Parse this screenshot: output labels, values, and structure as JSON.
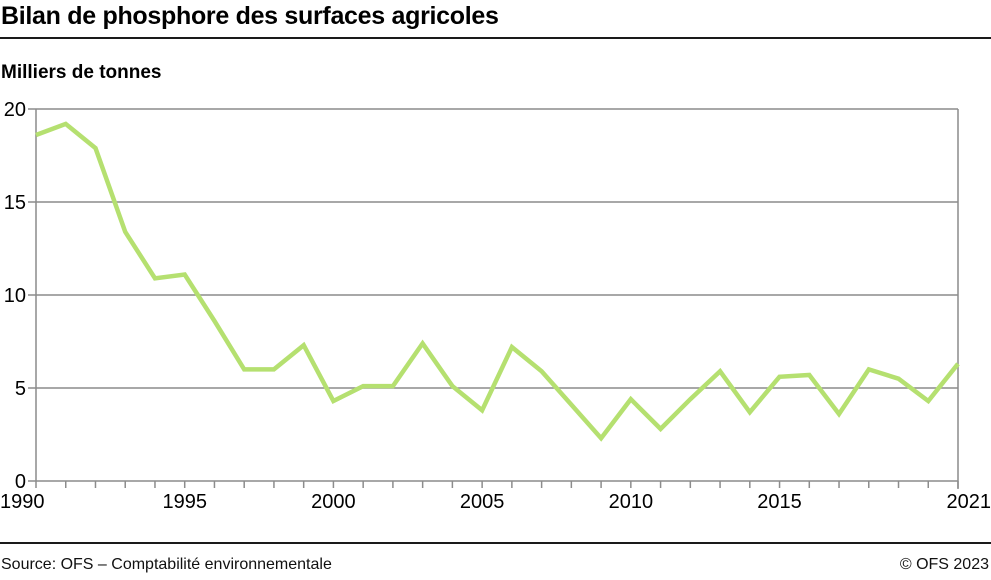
{
  "header": {
    "title": "Bilan de phosphore des surfaces agricoles",
    "unit_label": "Milliers de tonnes"
  },
  "footer": {
    "source": "Source: OFS – Comptabilité environnementale",
    "copyright": "© OFS 2023"
  },
  "colors": {
    "line": "#b5e070",
    "grid": "#8c8c8c",
    "axis": "#8c8c8c",
    "text": "#000000"
  },
  "chart_data": {
    "type": "line",
    "title": "Bilan de phosphore des surfaces agricoles",
    "subtitle": "",
    "xlabel": "",
    "ylabel": "Milliers de tonnes",
    "x": [
      1990,
      1991,
      1992,
      1993,
      1994,
      1995,
      1996,
      1997,
      1998,
      1999,
      2000,
      2001,
      2002,
      2003,
      2004,
      2005,
      2006,
      2007,
      2008,
      2009,
      2010,
      2011,
      2012,
      2013,
      2014,
      2015,
      2016,
      2017,
      2018,
      2019,
      2020,
      2021
    ],
    "series": [
      {
        "name": "Bilan de phosphore",
        "values": [
          18.6,
          19.2,
          17.9,
          13.4,
          10.9,
          11.1,
          8.6,
          6.0,
          6.0,
          7.3,
          4.3,
          5.1,
          5.1,
          7.4,
          5.1,
          3.8,
          7.2,
          5.9,
          4.1,
          2.3,
          4.4,
          2.8,
          4.4,
          5.9,
          3.7,
          5.6,
          5.7,
          3.6,
          6.0,
          5.5,
          4.3,
          6.3
        ]
      }
    ],
    "x_tick_labels": [
      "1990",
      "1995",
      "2000",
      "2005",
      "2010",
      "2015",
      "2021"
    ],
    "y_tick_labels": [
      "0",
      "5",
      "10",
      "15",
      "20"
    ],
    "xlim": [
      1990,
      2021
    ],
    "ylim": [
      0,
      20
    ],
    "grid": true,
    "legend": null
  }
}
